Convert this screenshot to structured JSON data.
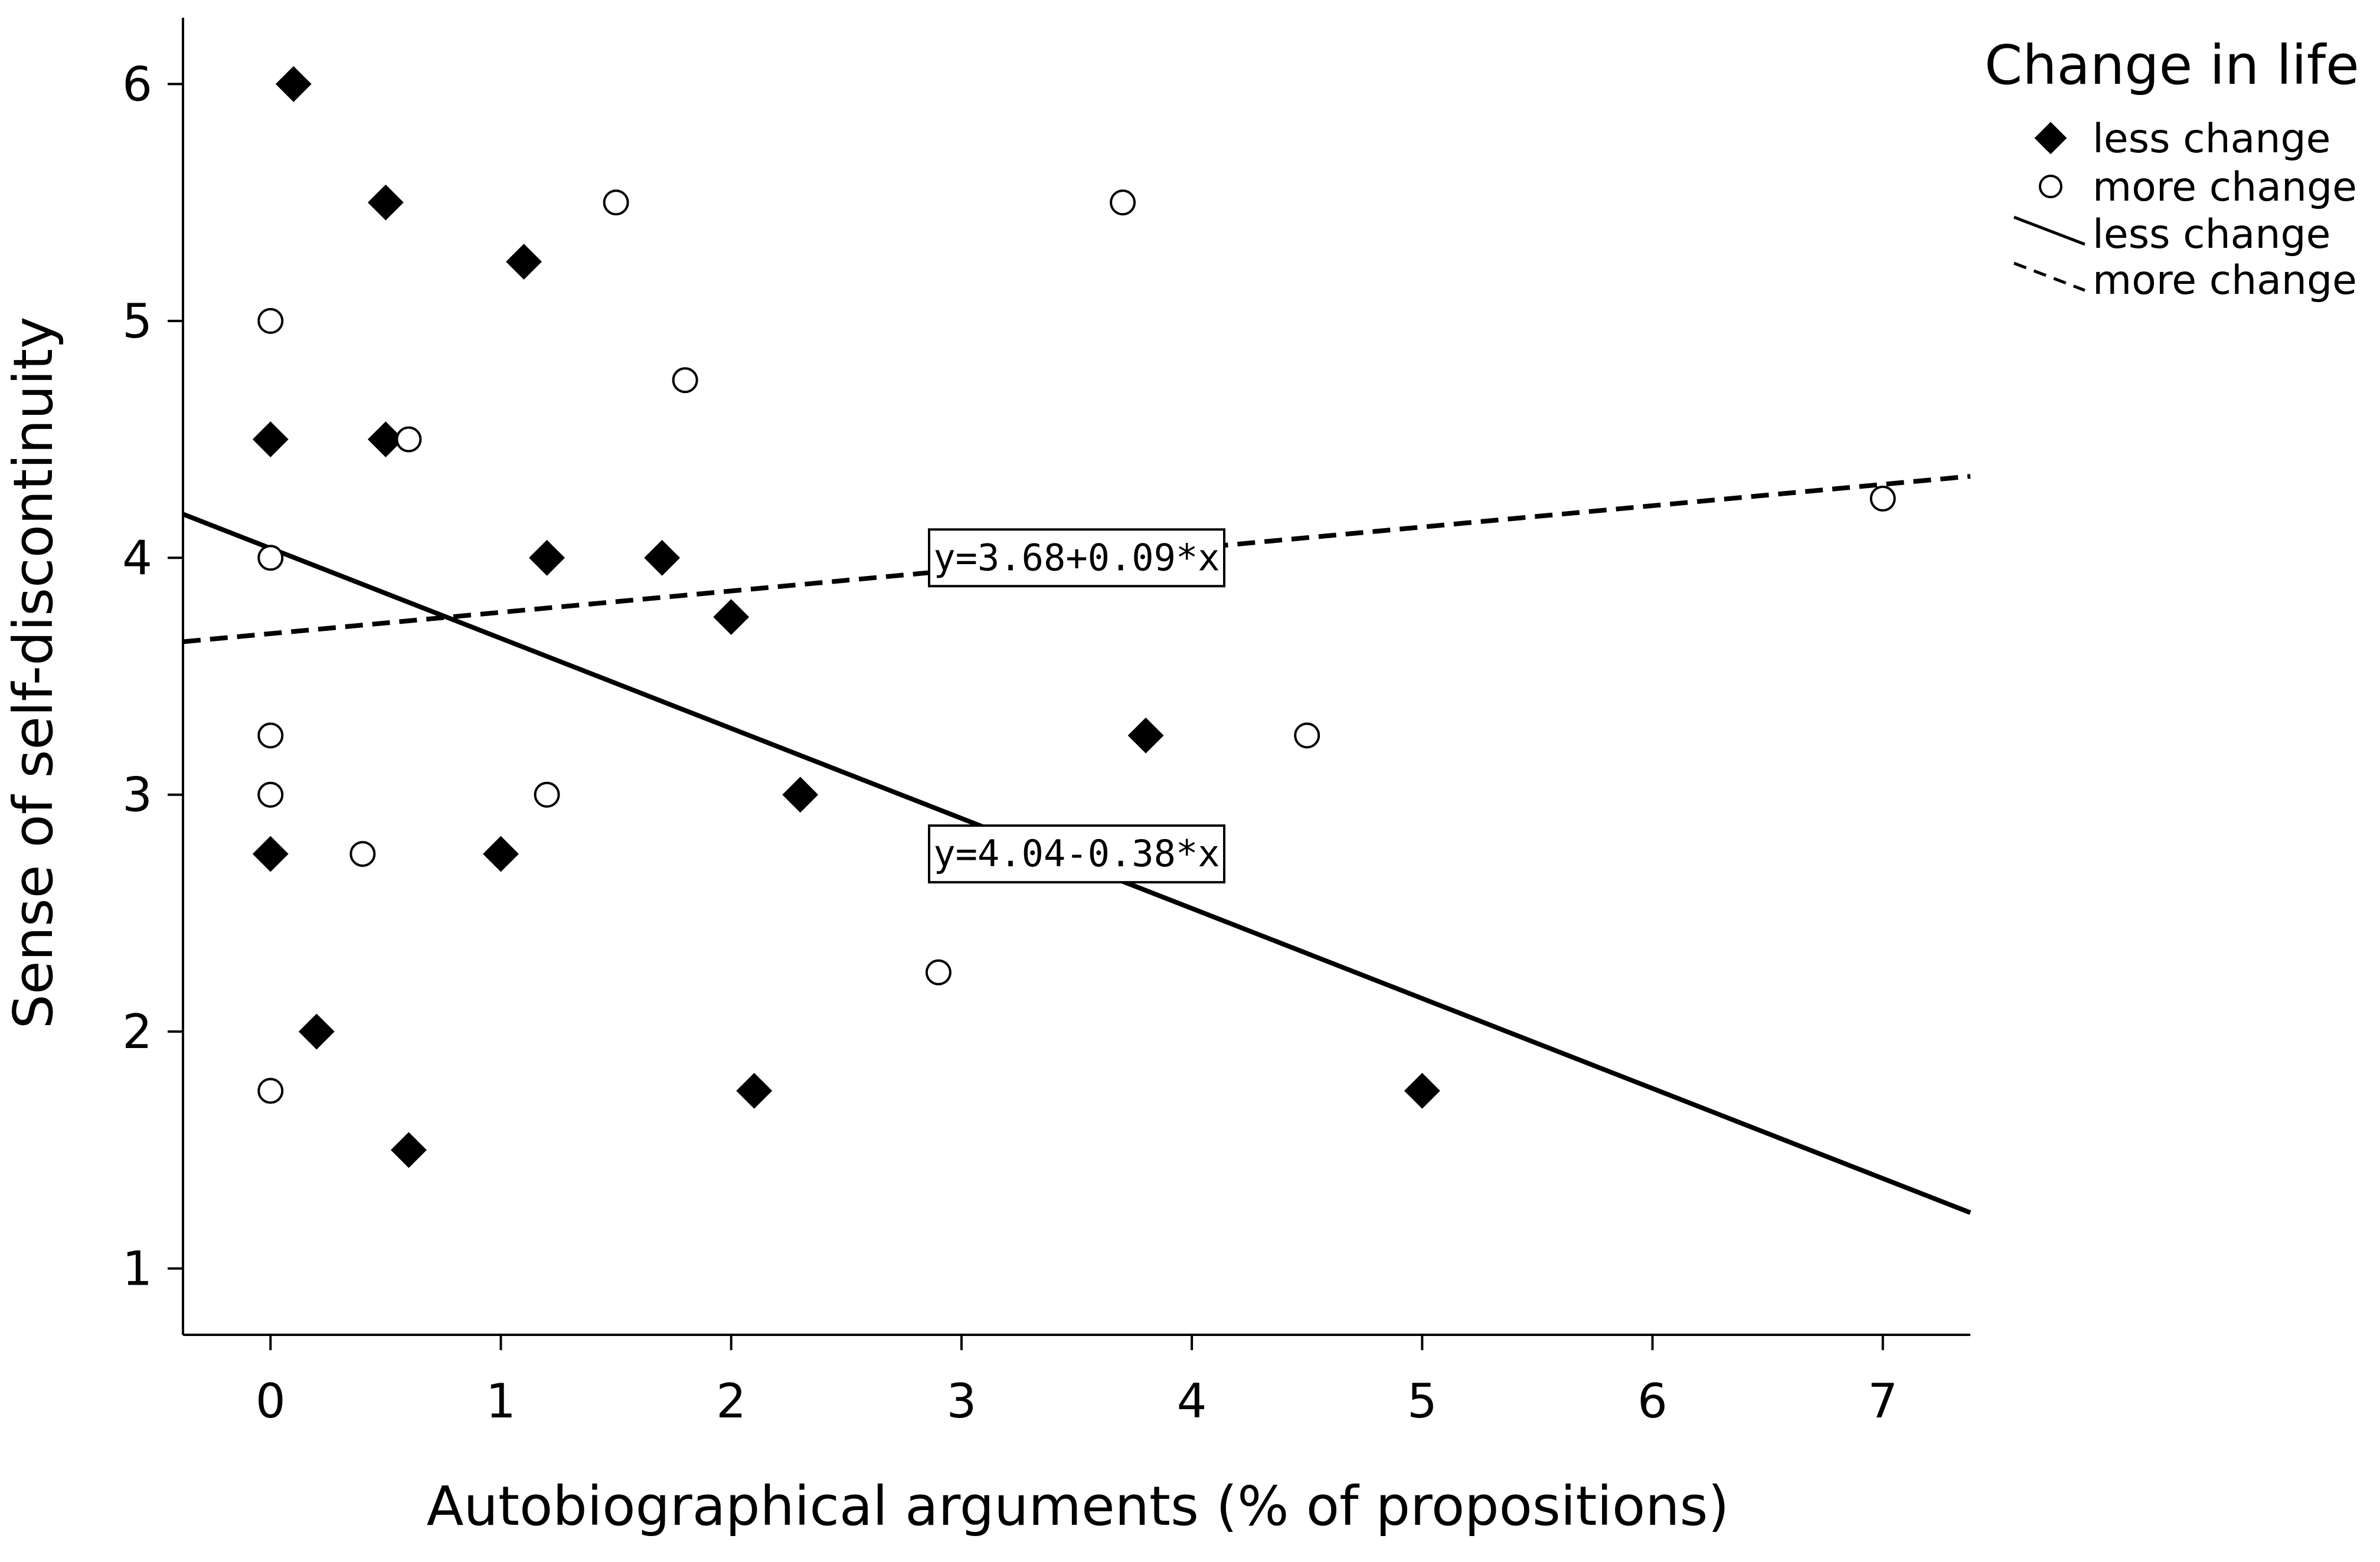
{
  "chart_data": {
    "type": "scatter",
    "title": "",
    "xlabel": "Autobiographical arguments (% of propositions)",
    "ylabel": "Sense of self-discontinuity",
    "xlim": [
      -0.38,
      7.38
    ],
    "ylim": [
      0.72,
      6.28
    ],
    "xticks": [
      0,
      1,
      2,
      3,
      4,
      5,
      6,
      7
    ],
    "yticks": [
      1,
      2,
      3,
      4,
      5,
      6
    ],
    "grid": false,
    "legend": {
      "title": "Change in life",
      "position": "top-right, outside plot",
      "entries": [
        {
          "label": "less change",
          "kind": "marker",
          "marker": "filled-diamond"
        },
        {
          "label": "more change",
          "kind": "marker",
          "marker": "open-circle"
        },
        {
          "label": "less change",
          "kind": "line",
          "style": "solid"
        },
        {
          "label": "more change",
          "kind": "line",
          "style": "dashed"
        }
      ]
    },
    "series": [
      {
        "name": "less change",
        "marker": "filled-diamond",
        "color": "#000000",
        "points": [
          {
            "x": 0.1,
            "y": 6.0
          },
          {
            "x": 0.5,
            "y": 5.5
          },
          {
            "x": 1.1,
            "y": 5.25
          },
          {
            "x": 0.0,
            "y": 4.5
          },
          {
            "x": 0.5,
            "y": 4.5
          },
          {
            "x": 1.2,
            "y": 4.0
          },
          {
            "x": 1.7,
            "y": 4.0
          },
          {
            "x": 2.0,
            "y": 3.75
          },
          {
            "x": 3.8,
            "y": 3.25
          },
          {
            "x": 2.3,
            "y": 3.0
          },
          {
            "x": 0.0,
            "y": 2.75
          },
          {
            "x": 1.0,
            "y": 2.75
          },
          {
            "x": 0.2,
            "y": 2.0
          },
          {
            "x": 2.1,
            "y": 1.75
          },
          {
            "x": 5.0,
            "y": 1.75
          },
          {
            "x": 0.6,
            "y": 1.5
          }
        ]
      },
      {
        "name": "more change",
        "marker": "open-circle",
        "color": "#000000",
        "points": [
          {
            "x": 1.5,
            "y": 5.5
          },
          {
            "x": 3.7,
            "y": 5.5
          },
          {
            "x": 0.0,
            "y": 5.0
          },
          {
            "x": 1.8,
            "y": 4.75
          },
          {
            "x": 0.6,
            "y": 4.5
          },
          {
            "x": 0.0,
            "y": 4.0
          },
          {
            "x": 7.0,
            "y": 4.25
          },
          {
            "x": 0.0,
            "y": 3.25
          },
          {
            "x": 4.5,
            "y": 3.25
          },
          {
            "x": 0.0,
            "y": 3.0
          },
          {
            "x": 1.2,
            "y": 3.0
          },
          {
            "x": 0.4,
            "y": 2.75
          },
          {
            "x": 2.9,
            "y": 2.25
          },
          {
            "x": 0.0,
            "y": 1.75
          }
        ]
      }
    ],
    "fit_lines": [
      {
        "name": "less change",
        "style": "solid",
        "intercept": 4.04,
        "slope": -0.38,
        "label": "y=4.04-0.38*x",
        "label_at": {
          "x": 3.5,
          "y": 2.75
        }
      },
      {
        "name": "more change",
        "style": "dashed",
        "intercept": 3.68,
        "slope": 0.09,
        "label": "y=3.68+0.09*x",
        "label_at": {
          "x": 3.5,
          "y": 4.0
        }
      }
    ]
  }
}
